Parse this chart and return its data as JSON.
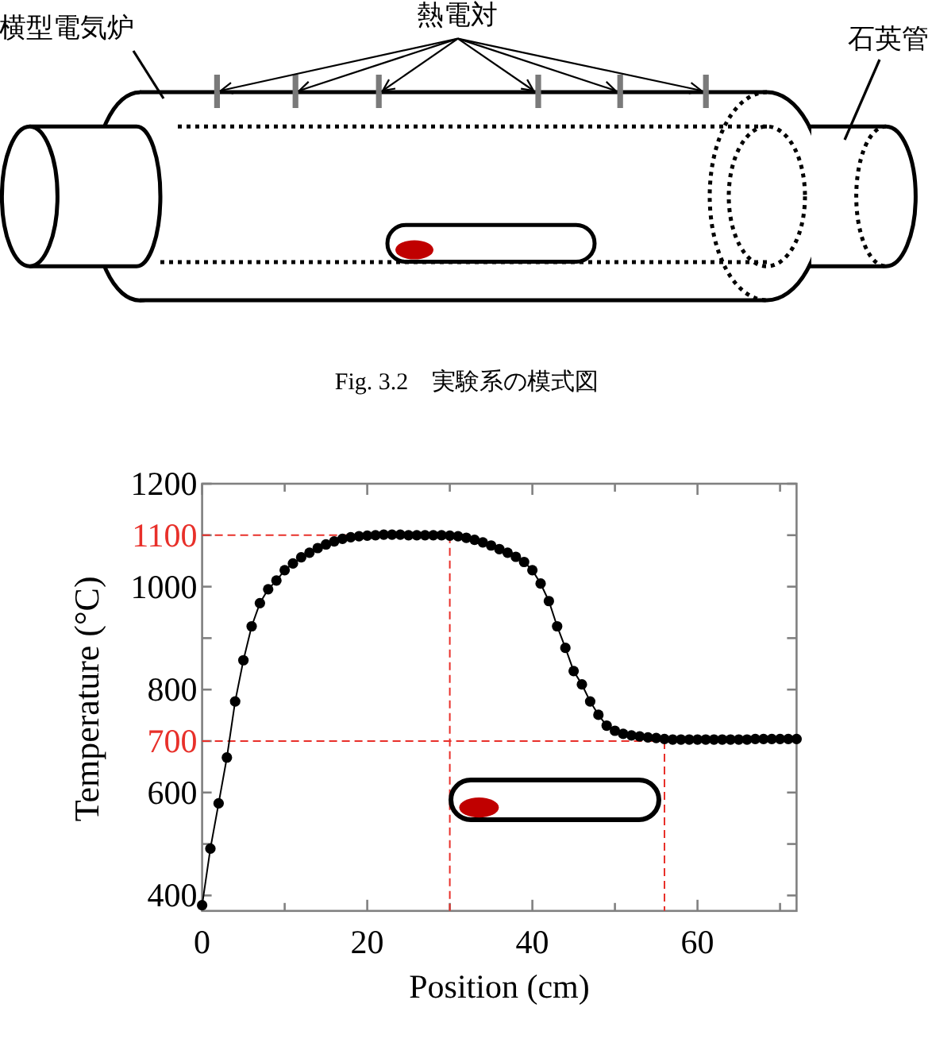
{
  "chart_data": [
    {
      "type": "other",
      "annotations": [
        "横型電気炉",
        "熱電対",
        "石英管",
        "Fig. 3.2　実験系の模式図"
      ]
    },
    {
      "type": "line",
      "xlabel": "Position (cm)",
      "ylabel": "Temperature (°C)",
      "color": "#000000",
      "marker": "circle",
      "line_style": "solid",
      "x": [
        0,
        1,
        2,
        3,
        4,
        5,
        6,
        7,
        8,
        9,
        10,
        11,
        12,
        13,
        14,
        15,
        16,
        17,
        18,
        19,
        20,
        21,
        22,
        23,
        24,
        25,
        26,
        27,
        28,
        29,
        30,
        31,
        32,
        33,
        34,
        35,
        36,
        37,
        38,
        39,
        40,
        41,
        42,
        43,
        44,
        45,
        46,
        47,
        48,
        49,
        50,
        51,
        52,
        53,
        54,
        55,
        56,
        57,
        58,
        59,
        60,
        61,
        62,
        63,
        64,
        65,
        66,
        67,
        68,
        69,
        70,
        71,
        72
      ],
      "values": [
        381,
        491,
        579,
        668,
        777,
        857,
        923,
        968,
        995,
        1012,
        1032,
        1045,
        1057,
        1066,
        1075,
        1082,
        1088,
        1093,
        1096,
        1098,
        1099,
        1100,
        1101,
        1101,
        1101,
        1100,
        1100,
        1100,
        1100,
        1100,
        1099,
        1098,
        1095,
        1091,
        1086,
        1080,
        1073,
        1066,
        1058,
        1048,
        1032,
        1006,
        972,
        923,
        881,
        836,
        810,
        777,
        751,
        730,
        720,
        714,
        711,
        709,
        707,
        706,
        704,
        703,
        703,
        703,
        703,
        703,
        703,
        703,
        703,
        703,
        703,
        704,
        704,
        704,
        704,
        704,
        704
      ],
      "xlim": [
        0,
        72
      ],
      "ylim": [
        370,
        1200
      ],
      "xticks": [
        0,
        {
          "value": 10,
          "label": null
        },
        20,
        {
          "value": 30,
          "label": null
        },
        40,
        {
          "value": 50,
          "label": null
        },
        60,
        {
          "value": 70,
          "label": null
        }
      ],
      "yticks": [
        400,
        {
          "value": 500,
          "label": null
        },
        600,
        {
          "value": 700,
          "label": null
        },
        800,
        {
          "value": 900,
          "label": null
        },
        1000,
        {
          "value": 1100,
          "label": null
        },
        1200
      ],
      "ref_lines": [
        {
          "axis": "y",
          "value": 1100,
          "label": "1100",
          "color": "#e8302a",
          "line_style": "dashed"
        },
        {
          "axis": "x",
          "value": 30,
          "color": "#e8302a",
          "line_style": "dashed"
        },
        {
          "axis": "y",
          "value": 700,
          "label": "700",
          "color": "#e8302a",
          "line_style": "dashed"
        },
        {
          "axis": "x",
          "value": 56,
          "color": "#e8302a",
          "line_style": "dashed"
        }
      ]
    }
  ]
}
